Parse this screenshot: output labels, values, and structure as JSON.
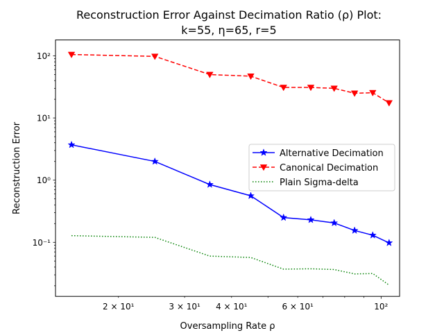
{
  "chart_data": {
    "type": "line",
    "title_line1": "Reconstruction Error Against Decimation Ratio (ρ) Plot:",
    "title_line2": "k=55, η=65, r=5",
    "xlabel": "Oversampling Rate ρ",
    "ylabel": "Reconstruction Error",
    "xscale": "log",
    "yscale": "log",
    "xlim": [
      13.6,
      112
    ],
    "ylim": [
      0.0135,
      180
    ],
    "grid": false,
    "legend_position": "center-right",
    "x": [
      15,
      25,
      35,
      45,
      55,
      65,
      75,
      85,
      95,
      105
    ],
    "x_tick_labels": [
      {
        "value": 20,
        "label": "2 × 10¹"
      },
      {
        "value": 30,
        "label": "3 × 10¹"
      },
      {
        "value": 40,
        "label": "4 × 10¹"
      },
      {
        "value": 60,
        "label": "6 × 10¹"
      },
      {
        "value": 100,
        "label": "10²"
      }
    ],
    "y_tick_labels": [
      {
        "value": 0.1,
        "label": "10⁻¹"
      },
      {
        "value": 1,
        "label": "10⁰"
      },
      {
        "value": 10,
        "label": "10¹"
      },
      {
        "value": 100,
        "label": "10²"
      }
    ],
    "series": [
      {
        "name": "Alternative Decimation",
        "color": "#0000ff",
        "linestyle": "solid",
        "marker": "star",
        "values": [
          3.7,
          2.0,
          0.85,
          0.56,
          0.25,
          0.23,
          0.205,
          0.155,
          0.13,
          0.098
        ]
      },
      {
        "name": "Canonical Decimation",
        "color": "#ff0000",
        "linestyle": "dashed",
        "marker": "triangle-down",
        "values": [
          105,
          98,
          50,
          47,
          31,
          31,
          30,
          25,
          25.5,
          17.5
        ]
      },
      {
        "name": "Plain Sigma-delta",
        "color": "#008000",
        "linestyle": "dotted",
        "marker": "none",
        "values": [
          0.128,
          0.12,
          0.06,
          0.057,
          0.037,
          0.0375,
          0.0365,
          0.031,
          0.0315,
          0.0205
        ]
      }
    ]
  }
}
